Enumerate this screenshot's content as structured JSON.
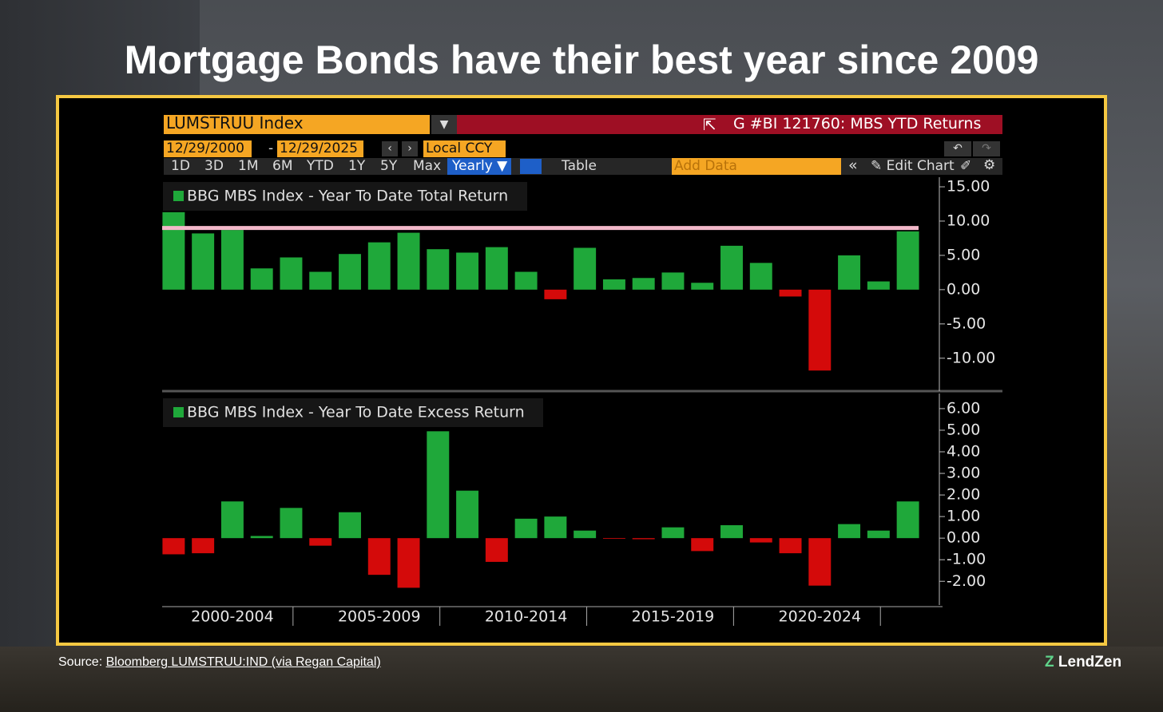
{
  "title": "Mortgage Bonds have their best year since 2009",
  "toolbar": {
    "ticker": "LUMSTRUU Index",
    "chart_name": "G #BI 121760: MBS YTD Returns",
    "start_date": "12/29/2000",
    "date_sep": "-",
    "end_date": "12/29/2025",
    "currency": "Local CCY",
    "ranges": [
      "1D",
      "3D",
      "1M",
      "6M",
      "YTD",
      "1Y",
      "5Y",
      "Max"
    ],
    "period": "Yearly",
    "table": "Table",
    "add_data": "Add Data",
    "edit_chart": "Edit Chart"
  },
  "source": {
    "prefix": "Source:",
    "link": "Bloomberg LUMSTRUU:IND (via Regan Capital)"
  },
  "logo": "LendZen",
  "chart_data": [
    {
      "type": "bar",
      "legend": "BBG MBS Index - Year To Date Total Return",
      "values": [
        11.3,
        8.2,
        8.7,
        3.1,
        4.7,
        2.6,
        5.2,
        6.9,
        8.3,
        5.9,
        5.4,
        6.2,
        2.6,
        -1.4,
        6.1,
        1.5,
        1.7,
        2.5,
        1.0,
        6.4,
        3.9,
        -1.0,
        -11.8,
        5.0,
        1.2,
        8.5
      ],
      "positive_color": "#1fa83a",
      "negative_color": "#d40a0a",
      "reference_line": 9.0,
      "reference_color": "#f2b8c9",
      "ylim": [
        -14.8,
        16.4
      ],
      "yticks": [
        {
          "value": 15,
          "label": "15.00"
        },
        {
          "value": 10,
          "label": "10.00"
        },
        {
          "value": 5,
          "label": "5.00"
        },
        {
          "value": 0,
          "label": "0.00"
        },
        {
          "value": -5,
          "label": "-5.00"
        },
        {
          "value": -10,
          "label": "-10.00"
        }
      ]
    },
    {
      "type": "bar",
      "legend": "BBG MBS Index - Year To Date Excess Return",
      "values": [
        -0.75,
        -0.7,
        1.7,
        0.1,
        1.4,
        -0.35,
        1.2,
        -1.7,
        -2.3,
        4.95,
        2.2,
        -1.1,
        0.9,
        1.0,
        0.35,
        -0.03,
        -0.05,
        0.5,
        -0.6,
        0.6,
        -0.2,
        -0.7,
        -2.2,
        0.65,
        0.35,
        1.7
      ],
      "positive_color": "#1fa83a",
      "negative_color": "#d40a0a",
      "ylim": [
        -3.1,
        6.7
      ],
      "yticks": [
        {
          "value": 6,
          "label": "6.00"
        },
        {
          "value": 5,
          "label": "5.00"
        },
        {
          "value": 4,
          "label": "4.00"
        },
        {
          "value": 3,
          "label": "3.00"
        },
        {
          "value": 2,
          "label": "2.00"
        },
        {
          "value": 1,
          "label": "1.00"
        },
        {
          "value": 0,
          "label": "0.00"
        },
        {
          "value": -1,
          "label": "-1.00"
        },
        {
          "value": -2,
          "label": "-2.00"
        }
      ],
      "xgroup_labels": [
        "2000-2004",
        "2005-2009",
        "2010-2014",
        "2015-2019",
        "2020-2024"
      ]
    }
  ]
}
